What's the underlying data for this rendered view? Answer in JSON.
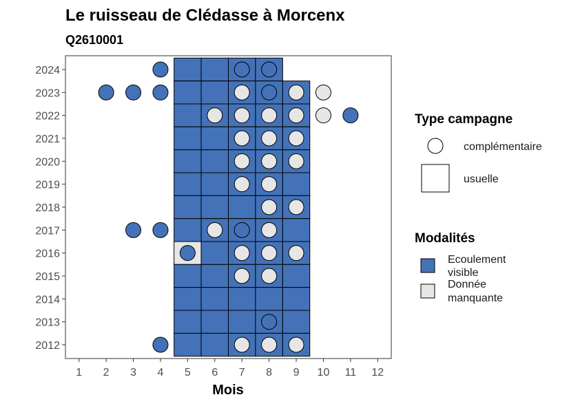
{
  "chart_data": {
    "type": "heatmap",
    "title": "Le ruisseau de Clédasse à Morcenx",
    "subtitle": "Q2610001",
    "xlabel": "Mois",
    "ylabel": "",
    "x_ticks": [
      1,
      2,
      3,
      4,
      5,
      6,
      7,
      8,
      9,
      10,
      11,
      12
    ],
    "y_ticks": [
      2012,
      2013,
      2014,
      2015,
      2016,
      2017,
      2018,
      2019,
      2020,
      2021,
      2022,
      2023,
      2024
    ],
    "xlim": [
      0.5,
      12.5
    ],
    "ylim": [
      2011.4,
      2024.6
    ],
    "grid": false,
    "colors": {
      "ecoulement": "#4472b8",
      "manquante": "#e6e6e6",
      "outline": "#000000"
    },
    "legend_type": {
      "title": "Type campagne",
      "items": [
        {
          "label": "complémentaire",
          "shape": "circle"
        },
        {
          "label": "usuelle",
          "shape": "square"
        }
      ]
    },
    "legend_modalites": {
      "title": "Modalités",
      "items": [
        {
          "label_line1": "Ecoulement",
          "label_line2": "visible",
          "key": "ecoulement"
        },
        {
          "label_line1": "Donnée",
          "label_line2": "manquante",
          "key": "manquante"
        }
      ]
    },
    "usuelle": [
      {
        "year": 2024,
        "months": [
          5,
          6,
          7,
          8
        ],
        "modalite": [
          1,
          1,
          1,
          1
        ]
      },
      {
        "year": 2023,
        "months": [
          5,
          6,
          7,
          8,
          9
        ],
        "modalite": [
          1,
          1,
          1,
          1,
          1
        ]
      },
      {
        "year": 2022,
        "months": [
          5,
          6,
          7,
          8,
          9
        ],
        "modalite": [
          1,
          1,
          1,
          1,
          1
        ]
      },
      {
        "year": 2021,
        "months": [
          5,
          6,
          7,
          8,
          9
        ],
        "modalite": [
          1,
          1,
          1,
          1,
          1
        ]
      },
      {
        "year": 2020,
        "months": [
          5,
          6,
          7,
          8,
          9
        ],
        "modalite": [
          1,
          1,
          1,
          1,
          1
        ]
      },
      {
        "year": 2019,
        "months": [
          5,
          6,
          7,
          8,
          9
        ],
        "modalite": [
          1,
          1,
          1,
          1,
          1
        ]
      },
      {
        "year": 2018,
        "months": [
          5,
          6,
          7,
          8,
          9
        ],
        "modalite": [
          1,
          1,
          1,
          1,
          1
        ]
      },
      {
        "year": 2017,
        "months": [
          5,
          6,
          7,
          8,
          9
        ],
        "modalite": [
          1,
          1,
          1,
          1,
          1
        ]
      },
      {
        "year": 2016,
        "months": [
          5,
          6,
          7,
          8,
          9
        ],
        "modalite": [
          0,
          1,
          1,
          1,
          1
        ]
      },
      {
        "year": 2015,
        "months": [
          5,
          6,
          7,
          8,
          9
        ],
        "modalite": [
          1,
          1,
          1,
          1,
          1
        ]
      },
      {
        "year": 2014,
        "months": [
          5,
          6,
          7,
          8,
          9
        ],
        "modalite": [
          1,
          1,
          1,
          1,
          1
        ]
      },
      {
        "year": 2013,
        "months": [
          5,
          6,
          7,
          8,
          9
        ],
        "modalite": [
          1,
          1,
          1,
          1,
          1
        ]
      },
      {
        "year": 2012,
        "months": [
          5,
          6,
          7,
          8,
          9
        ],
        "modalite": [
          1,
          1,
          1,
          1,
          1
        ]
      }
    ],
    "complementaire": [
      {
        "year": 2024,
        "months": [
          4,
          7,
          8
        ],
        "modalite": [
          1,
          1,
          1
        ]
      },
      {
        "year": 2023,
        "months": [
          2,
          3,
          4,
          7,
          8,
          9,
          10
        ],
        "modalite": [
          1,
          1,
          1,
          0,
          1,
          0,
          0
        ]
      },
      {
        "year": 2022,
        "months": [
          6,
          7,
          8,
          9,
          10,
          11
        ],
        "modalite": [
          0,
          0,
          0,
          0,
          0,
          1
        ]
      },
      {
        "year": 2021,
        "months": [
          7,
          8,
          9
        ],
        "modalite": [
          0,
          0,
          0
        ]
      },
      {
        "year": 2020,
        "months": [
          7,
          8,
          9
        ],
        "modalite": [
          0,
          0,
          0
        ]
      },
      {
        "year": 2019,
        "months": [
          7,
          8
        ],
        "modalite": [
          0,
          0
        ]
      },
      {
        "year": 2018,
        "months": [
          8,
          9
        ],
        "modalite": [
          0,
          0
        ]
      },
      {
        "year": 2017,
        "months": [
          3,
          4,
          6,
          7,
          8
        ],
        "modalite": [
          1,
          1,
          0,
          1,
          0
        ]
      },
      {
        "year": 2016,
        "months": [
          5,
          7,
          8,
          9
        ],
        "modalite": [
          1,
          0,
          0,
          0
        ]
      },
      {
        "year": 2015,
        "months": [
          7,
          8
        ],
        "modalite": [
          0,
          0
        ]
      },
      {
        "year": 2013,
        "months": [
          8
        ],
        "modalite": [
          1
        ]
      },
      {
        "year": 2012,
        "months": [
          4,
          7,
          8,
          9
        ],
        "modalite": [
          1,
          0,
          0,
          0
        ]
      }
    ]
  }
}
